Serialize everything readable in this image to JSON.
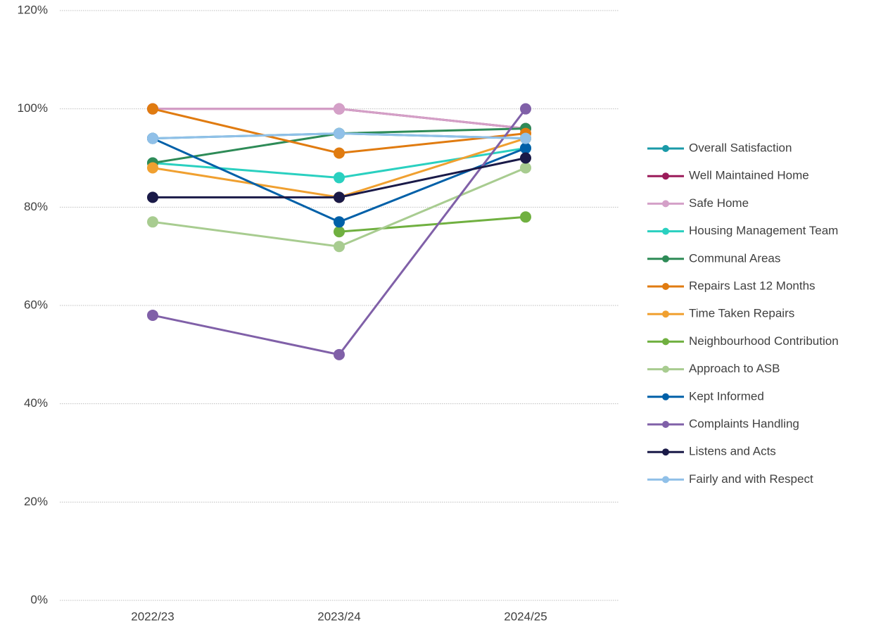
{
  "chart_data": {
    "type": "line",
    "categories": [
      "2022/23",
      "2023/24",
      "2024/25"
    ],
    "ylim": [
      0,
      120
    ],
    "yticks": [
      {
        "value": 0,
        "label": "0%"
      },
      {
        "value": 20,
        "label": "20%"
      },
      {
        "value": 40,
        "label": "40%"
      },
      {
        "value": 60,
        "label": "60%"
      },
      {
        "value": 80,
        "label": "80%"
      },
      {
        "value": 100,
        "label": "100%"
      },
      {
        "value": 120,
        "label": "120%"
      }
    ],
    "grid": true,
    "legend": "right",
    "series": [
      {
        "name": "Overall Satisfaction",
        "color": "#1a9aa8",
        "values": [
          94,
          95,
          94
        ]
      },
      {
        "name": "Well Maintained Home",
        "color": "#9b1b5a",
        "values": [
          100,
          100,
          96
        ]
      },
      {
        "name": "Safe Home",
        "color": "#d4a0c8",
        "values": [
          100,
          100,
          96
        ]
      },
      {
        "name": "Housing Management Team",
        "color": "#2ad0c0",
        "values": [
          89,
          86,
          92
        ]
      },
      {
        "name": "Communal Areas",
        "color": "#2e8b57",
        "values": [
          89,
          95,
          96
        ]
      },
      {
        "name": "Repairs Last 12 Months",
        "color": "#e07b10",
        "values": [
          100,
          91,
          95
        ]
      },
      {
        "name": "Time Taken Repairs",
        "color": "#f0a030",
        "values": [
          88,
          82,
          94
        ]
      },
      {
        "name": "Neighbourhood Contribution",
        "color": "#70b040",
        "values": [
          null,
          75,
          78
        ]
      },
      {
        "name": "Approach to ASB",
        "color": "#a8cc90",
        "values": [
          77,
          72,
          88
        ]
      },
      {
        "name": "Kept Informed",
        "color": "#0060a8",
        "values": [
          94,
          77,
          92
        ]
      },
      {
        "name": "Complaints Handling",
        "color": "#8060a8",
        "values": [
          58,
          50,
          100
        ]
      },
      {
        "name": "Listens and Acts",
        "color": "#1a1a48",
        "values": [
          82,
          82,
          90
        ]
      },
      {
        "name": "Fairly and with Respect",
        "color": "#90c0e8",
        "values": [
          94,
          95,
          94
        ]
      }
    ]
  }
}
